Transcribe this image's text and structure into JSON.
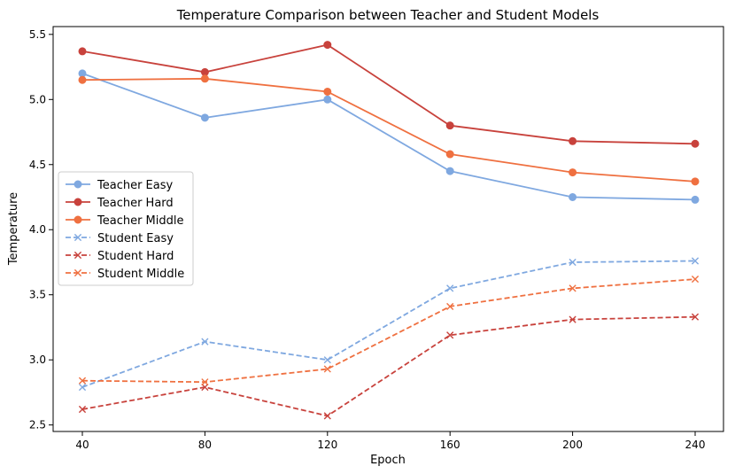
{
  "chart_data": {
    "type": "line",
    "title": "Temperature Comparison between Teacher and Student Models",
    "xlabel": "Epoch",
    "ylabel": "Temperature",
    "x": [
      40,
      80,
      120,
      160,
      200,
      240
    ],
    "x_tick_labels": [
      "40",
      "80",
      "120",
      "160",
      "200",
      "240"
    ],
    "ylim": [
      2.45,
      5.56
    ],
    "y_ticks": [
      2.5,
      3.0,
      3.5,
      4.0,
      4.5,
      5.0,
      5.5
    ],
    "y_tick_labels": [
      "2.5",
      "3.0",
      "3.5",
      "4.0",
      "4.5",
      "5.0",
      "5.5"
    ],
    "grid": false,
    "legend_position": "center-left",
    "series": [
      {
        "name": "Teacher Easy",
        "values": [
          5.2,
          4.86,
          5.0,
          4.45,
          4.25,
          4.23
        ],
        "color": "#7fa8e0",
        "linestyle": "solid",
        "marker": "circle"
      },
      {
        "name": "Teacher Hard",
        "values": [
          5.37,
          5.21,
          5.42,
          4.8,
          4.68,
          4.66
        ],
        "color": "#c8423c",
        "linestyle": "solid",
        "marker": "circle"
      },
      {
        "name": "Teacher Middle",
        "values": [
          5.15,
          5.16,
          5.06,
          4.58,
          4.44,
          4.37
        ],
        "color": "#ef7040",
        "linestyle": "solid",
        "marker": "circle"
      },
      {
        "name": "Student Easy",
        "values": [
          2.79,
          3.14,
          3.0,
          3.55,
          3.75,
          3.76
        ],
        "color": "#7fa8e0",
        "linestyle": "dashed",
        "marker": "x"
      },
      {
        "name": "Student Hard",
        "values": [
          2.62,
          2.79,
          2.57,
          3.19,
          3.31,
          3.33
        ],
        "color": "#c8423c",
        "linestyle": "dashed",
        "marker": "x"
      },
      {
        "name": "Student Middle",
        "values": [
          2.84,
          2.83,
          2.93,
          3.41,
          3.55,
          3.62
        ],
        "color": "#ef7040",
        "linestyle": "dashed",
        "marker": "x"
      }
    ]
  }
}
